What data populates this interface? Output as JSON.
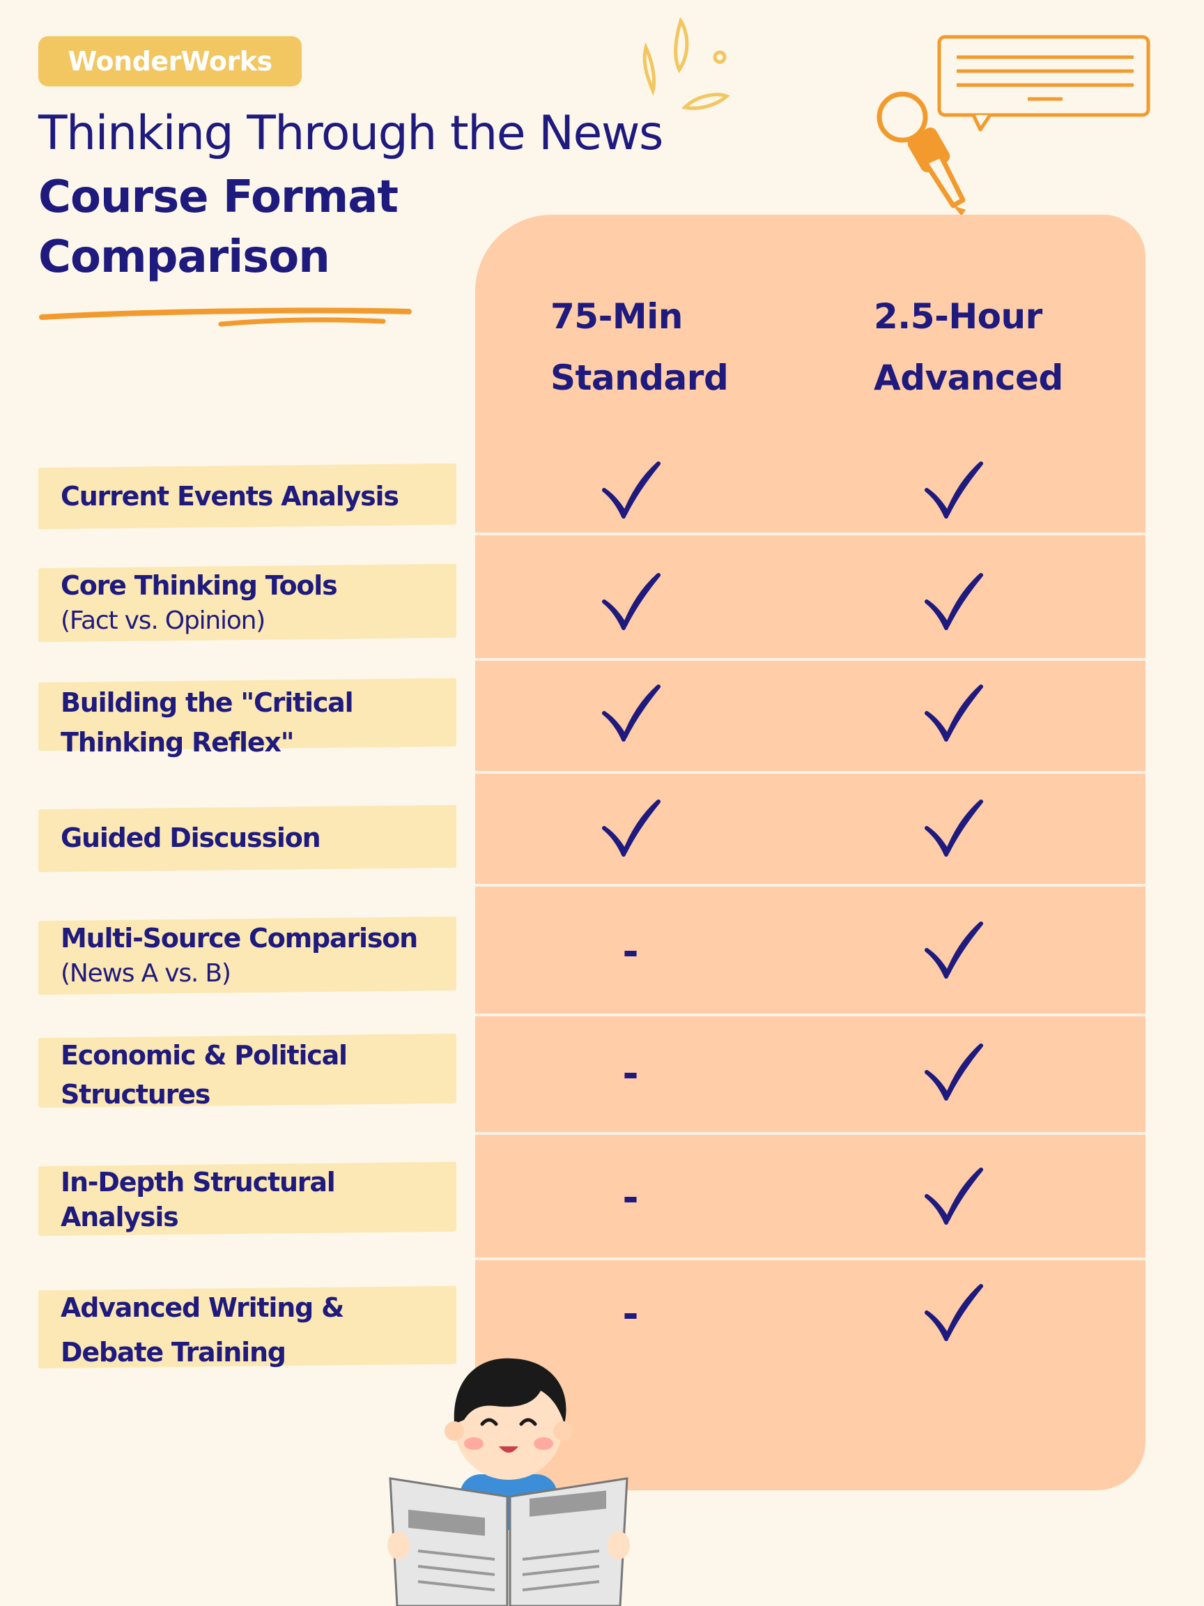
{
  "brand": {
    "name": "WonderWorks"
  },
  "header": {
    "subtitle": "Thinking Through the News",
    "title_line1": "Course Format",
    "title_line2": "Comparison"
  },
  "colors": {
    "navy": "#1e1a7e",
    "accent_orange": "#f29a2e",
    "panel": "#ffcda8",
    "label_highlight": "#fce8b4",
    "brand_badge": "#f2c661"
  },
  "columns": [
    {
      "line1": "75-Min",
      "line2": "Standard"
    },
    {
      "line1": "2.5-Hour",
      "line2": "Advanced"
    }
  ],
  "rows": [
    {
      "main": "Current Events Analysis",
      "sub": "",
      "standard": "check",
      "advanced": "check"
    },
    {
      "main": "Core Thinking Tools",
      "sub": "(Fact vs. Opinion)",
      "standard": "check",
      "advanced": "check"
    },
    {
      "main": "Building the \"Critical",
      "main2": "Thinking Reflex\"",
      "standard": "check",
      "advanced": "check"
    },
    {
      "main": "Guided Discussion",
      "sub": "",
      "standard": "check",
      "advanced": "check"
    },
    {
      "main": "Multi-Source Comparison",
      "sub": "(News A vs. B)",
      "standard": "-",
      "advanced": "check"
    },
    {
      "main": "Economic & Political",
      "main2": "Structures",
      "standard": "-",
      "advanced": "check"
    },
    {
      "main": "In-Depth Structural",
      "main2": "Analysis",
      "standard": "-",
      "advanced": "check"
    },
    {
      "main": "Advanced Writing &",
      "main2": "Debate Training",
      "standard": "-",
      "advanced": "check"
    }
  ],
  "icons": {
    "check": "check-icon",
    "dash": "dash-icon",
    "microphone": "microphone-icon",
    "speech_bubble": "speech-bubble-icon",
    "boy_reading": "boy-reading-newspaper-illustration"
  }
}
